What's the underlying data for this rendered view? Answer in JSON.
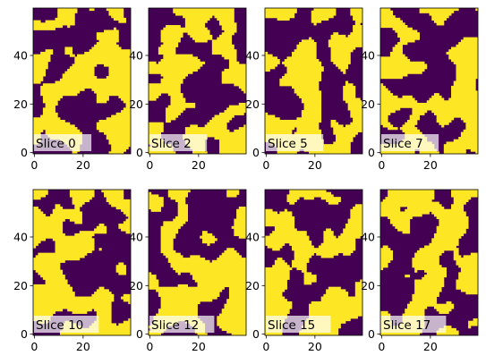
{
  "chart_data": {
    "type": "heatmap",
    "layout": "2 rows x 4 columns of binary image panels",
    "colormap": [
      "#440154",
      "#fde725"
    ],
    "grid": false,
    "xlim": [
      0,
      39
    ],
    "ylim": [
      0,
      59
    ],
    "xticks": [
      "0",
      "20"
    ],
    "yticks": [
      "0",
      "20",
      "40"
    ],
    "panels": [
      {
        "label": "Slice 0"
      },
      {
        "label": "Slice 2"
      },
      {
        "label": "Slice 5"
      },
      {
        "label": "Slice 7"
      },
      {
        "label": "Slice 10"
      },
      {
        "label": "Slice 12"
      },
      {
        "label": "Slice 15"
      },
      {
        "label": "Slice 17"
      }
    ]
  }
}
